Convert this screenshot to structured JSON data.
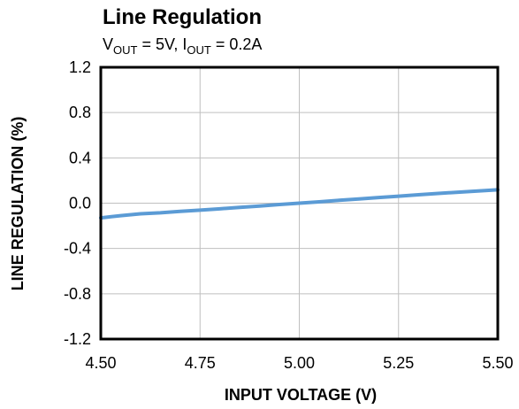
{
  "chart_data": {
    "type": "line",
    "title": "Line Regulation",
    "subtitle": {
      "v_main": "V",
      "v_sub": "OUT",
      "v_rest": " = 5V, ",
      "i_main": "I",
      "i_sub": "OUT",
      "i_rest": " = 0.2A"
    },
    "xlabel": "INPUT VOLTAGE (V)",
    "ylabel": "LINE REGULATION (%)",
    "xlim": [
      4.5,
      5.5
    ],
    "ylim": [
      -1.2,
      1.2
    ],
    "xticks": [
      4.5,
      4.75,
      5.0,
      5.25,
      5.5
    ],
    "xtick_labels": [
      "4.50",
      "4.75",
      "5.00",
      "5.25",
      "5.50"
    ],
    "yticks": [
      1.2,
      0.8,
      0.4,
      0.0,
      -0.4,
      -0.8,
      -1.2
    ],
    "ytick_labels": [
      "1.2",
      "0.8",
      "0.4",
      "0.0",
      "-0.4",
      "-0.8",
      "-1.2"
    ],
    "grid": true,
    "series": [
      {
        "color": "#5b9bd5",
        "x": [
          4.5,
          4.55,
          4.6,
          4.65,
          4.7,
          4.75,
          4.8,
          4.85,
          4.9,
          4.95,
          5.0,
          5.05,
          5.1,
          5.15,
          5.2,
          5.25,
          5.3,
          5.35,
          5.4,
          5.45,
          5.5
        ],
        "y": [
          -0.13,
          -0.11,
          -0.094,
          -0.085,
          -0.073,
          -0.062,
          -0.05,
          -0.037,
          -0.025,
          -0.012,
          0.0,
          0.012,
          0.025,
          0.037,
          0.05,
          0.062,
          0.074,
          0.086,
          0.097,
          0.107,
          0.118
        ]
      }
    ]
  }
}
